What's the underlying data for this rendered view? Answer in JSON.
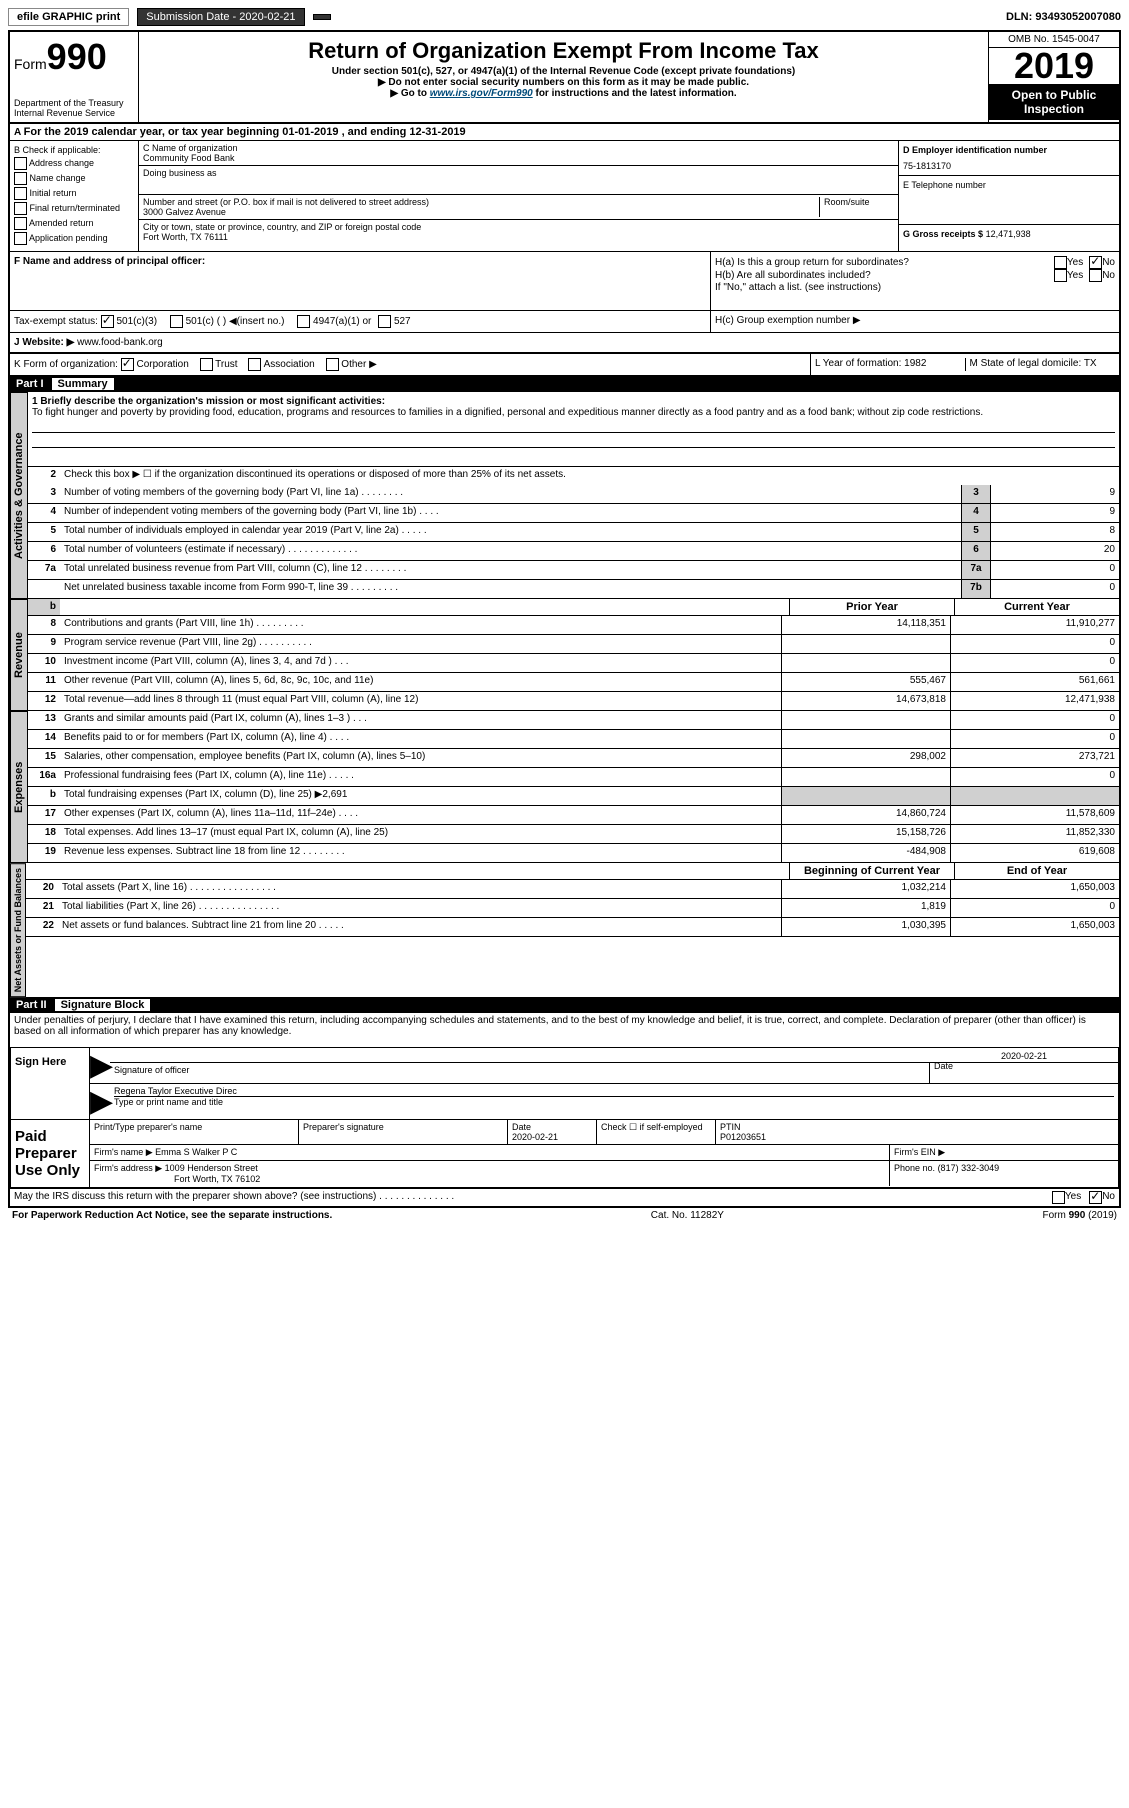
{
  "topbar": {
    "efile": "efile GRAPHIC print",
    "submission_label": "Submission Date - 2020-02-21",
    "dln": "DLN: 93493052007080"
  },
  "header": {
    "form_prefix": "Form",
    "form_num": "990",
    "dept": "Department of the Treasury",
    "irs": "Internal Revenue Service",
    "title": "Return of Organization Exempt From Income Tax",
    "subtitle": "Under section 501(c), 527, or 4947(a)(1) of the Internal Revenue Code (except private foundations)",
    "note1": "▶ Do not enter social security numbers on this form as it may be made public.",
    "note2_pre": "▶ Go to ",
    "note2_link": "www.irs.gov/Form990",
    "note2_post": " for instructions and the latest information.",
    "omb": "OMB No. 1545-0047",
    "year": "2019",
    "open_public": "Open to Public Inspection"
  },
  "period": "For the 2019 calendar year, or tax year beginning 01-01-2019   , and ending 12-31-2019",
  "boxB": {
    "title": "B Check if applicable:",
    "items": [
      "Address change",
      "Name change",
      "Initial return",
      "Final return/terminated",
      "Amended return",
      "Application pending"
    ]
  },
  "boxC": {
    "name_label": "C Name of organization",
    "name": "Community Food Bank",
    "dba_label": "Doing business as",
    "addr_label": "Number and street (or P.O. box if mail is not delivered to street address)",
    "room_label": "Room/suite",
    "addr": "3000 Galvez Avenue",
    "city_label": "City or town, state or province, country, and ZIP or foreign postal code",
    "city": "Fort Worth, TX  76111"
  },
  "boxD": {
    "label": "D Employer identification number",
    "value": "75-1813170"
  },
  "boxE": {
    "label": "E Telephone number"
  },
  "boxG": {
    "label": "G Gross receipts $",
    "value": "12,471,938"
  },
  "boxF": {
    "label": "F  Name and address of principal officer:"
  },
  "boxH": {
    "a": "H(a)  Is this a group return for subordinates?",
    "b": "H(b)  Are all subordinates included?",
    "b_note": "If \"No,\" attach a list. (see instructions)",
    "c": "H(c)  Group exemption number ▶",
    "yes": "Yes",
    "no": "No"
  },
  "taxexempt": {
    "label": "Tax-exempt status:",
    "opt1": "501(c)(3)",
    "opt2": "501(c) (  ) ◀(insert no.)",
    "opt3": "4947(a)(1) or",
    "opt4": "527"
  },
  "boxJ": {
    "label": "J    Website: ▶",
    "value": "www.food-bank.org"
  },
  "boxK": {
    "label": "K Form of organization:",
    "opts": [
      "Corporation",
      "Trust",
      "Association",
      "Other ▶"
    ]
  },
  "boxL": {
    "label": "L Year of formation:",
    "value": "1982"
  },
  "boxM": {
    "label": "M State of legal domicile:",
    "value": "TX"
  },
  "part1": {
    "header": "Part I",
    "title": "Summary",
    "line1_label": "1  Briefly describe the organization's mission or most significant activities:",
    "line1_text": "To fight hunger and poverty by providing food, education, programs and resources to families in a dignified, personal and expeditious manner directly as a food pantry and as a food bank; without zip code restrictions.",
    "line2": "Check this box ▶ ☐  if the organization discontinued its operations or disposed of more than 25% of its net assets.",
    "sidebar1": "Activities & Governance",
    "sidebar2": "Revenue",
    "sidebar3": "Expenses",
    "sidebar4": "Net Assets or Fund Balances",
    "prior_year": "Prior Year",
    "current_year": "Current Year",
    "beg_year": "Beginning of Current Year",
    "end_year": "End of Year",
    "rows_simple": [
      {
        "n": "3",
        "t": "Number of voting members of the governing body (Part VI, line 1a)  .  .  .  .  .  .  .  .",
        "box": "3",
        "v": "9"
      },
      {
        "n": "4",
        "t": "Number of independent voting members of the governing body (Part VI, line 1b)  .  .  .  .",
        "box": "4",
        "v": "9"
      },
      {
        "n": "5",
        "t": "Total number of individuals employed in calendar year 2019 (Part V, line 2a)  .  .  .  .  .",
        "box": "5",
        "v": "8"
      },
      {
        "n": "6",
        "t": "Total number of volunteers (estimate if necessary)   .  .  .  .  .  .  .  .  .  .  .  .  .",
        "box": "6",
        "v": "20"
      },
      {
        "n": "7a",
        "t": "Total unrelated business revenue from Part VIII, column (C), line 12  .  .  .  .  .  .  .  .",
        "box": "7a",
        "v": "0"
      },
      {
        "n": "",
        "t": "Net unrelated business taxable income from Form 990-T, line 39   .  .  .  .  .  .  .  .  .",
        "box": "7b",
        "v": "0"
      }
    ],
    "rows_rev": [
      {
        "n": "8",
        "t": "Contributions and grants (Part VIII, line 1h)  .  .  .  .  .  .  .  .  .",
        "p": "14,118,351",
        "c": "11,910,277"
      },
      {
        "n": "9",
        "t": "Program service revenue (Part VIII, line 2g)  .  .  .  .  .  .  .  .  .  .",
        "p": "",
        "c": "0"
      },
      {
        "n": "10",
        "t": "Investment income (Part VIII, column (A), lines 3, 4, and 7d )  .  .  .",
        "p": "",
        "c": "0"
      },
      {
        "n": "11",
        "t": "Other revenue (Part VIII, column (A), lines 5, 6d, 8c, 9c, 10c, and 11e)",
        "p": "555,467",
        "c": "561,661"
      },
      {
        "n": "12",
        "t": "Total revenue—add lines 8 through 11 (must equal Part VIII, column (A), line 12)",
        "p": "14,673,818",
        "c": "12,471,938"
      }
    ],
    "rows_exp": [
      {
        "n": "13",
        "t": "Grants and similar amounts paid (Part IX, column (A), lines 1–3 )  .  .  .",
        "p": "",
        "c": "0"
      },
      {
        "n": "14",
        "t": "Benefits paid to or for members (Part IX, column (A), line 4)  .  .  .  .",
        "p": "",
        "c": "0"
      },
      {
        "n": "15",
        "t": "Salaries, other compensation, employee benefits (Part IX, column (A), lines 5–10)",
        "p": "298,002",
        "c": "273,721"
      },
      {
        "n": "16a",
        "t": "Professional fundraising fees (Part IX, column (A), line 11e)  .  .  .  .  .",
        "p": "",
        "c": "0"
      },
      {
        "n": "b",
        "t": "Total fundraising expenses (Part IX, column (D), line 25) ▶2,691",
        "p": "shaded",
        "c": "shaded"
      },
      {
        "n": "17",
        "t": "Other expenses (Part IX, column (A), lines 11a–11d, 11f–24e)  .  .  .  .",
        "p": "14,860,724",
        "c": "11,578,609"
      },
      {
        "n": "18",
        "t": "Total expenses. Add lines 13–17 (must equal Part IX, column (A), line 25)",
        "p": "15,158,726",
        "c": "11,852,330"
      },
      {
        "n": "19",
        "t": "Revenue less expenses. Subtract line 18 from line 12 .  .  .  .  .  .  .  .",
        "p": "-484,908",
        "c": "619,608"
      }
    ],
    "rows_net": [
      {
        "n": "20",
        "t": "Total assets (Part X, line 16)  .  .  .  .  .  .  .  .  .  .  .  .  .  .  .  .",
        "p": "1,032,214",
        "c": "1,650,003"
      },
      {
        "n": "21",
        "t": "Total liabilities (Part X, line 26)  .  .  .  .  .  .  .  .  .  .  .  .  .  .  .",
        "p": "1,819",
        "c": "0"
      },
      {
        "n": "22",
        "t": "Net assets or fund balances. Subtract line 21 from line 20  .  .  .  .  .",
        "p": "1,030,395",
        "c": "1,650,003"
      }
    ]
  },
  "part2": {
    "header": "Part II",
    "title": "Signature Block",
    "declaration": "Under penalties of perjury, I declare that I have examined this return, including accompanying schedules and statements, and to the best of my knowledge and belief, it is true, correct, and complete. Declaration of preparer (other than officer) is based on all information of which preparer has any knowledge."
  },
  "sign": {
    "label": "Sign Here",
    "sig_officer": "Signature of officer",
    "date_label": "Date",
    "date": "2020-02-21",
    "name": "Regena Taylor Executive Direc",
    "name_label": "Type or print name and title"
  },
  "preparer": {
    "label": "Paid Preparer Use Only",
    "print_name": "Print/Type preparer's name",
    "sig": "Preparer's signature",
    "date_label": "Date",
    "date": "2020-02-21",
    "check": "Check ☐ if self-employed",
    "ptin_label": "PTIN",
    "ptin": "P01203651",
    "firm_name_label": "Firm's name    ▶",
    "firm_name": "Emma S Walker P C",
    "firm_ein_label": "Firm's EIN ▶",
    "firm_addr_label": "Firm's address ▶",
    "firm_addr1": "1009 Henderson Street",
    "firm_addr2": "Fort Worth, TX  76102",
    "phone_label": "Phone no.",
    "phone": "(817) 332-3049"
  },
  "footer": {
    "discuss": "May the IRS discuss this return with the preparer shown above? (see instructions)  .  .  .  .  .  .  .  .  .  .  .  .  .  .",
    "yes": "Yes",
    "no": "No",
    "paperwork": "For Paperwork Reduction Act Notice, see the separate instructions.",
    "cat": "Cat. No. 11282Y",
    "formnum": "Form 990 (2019)"
  }
}
